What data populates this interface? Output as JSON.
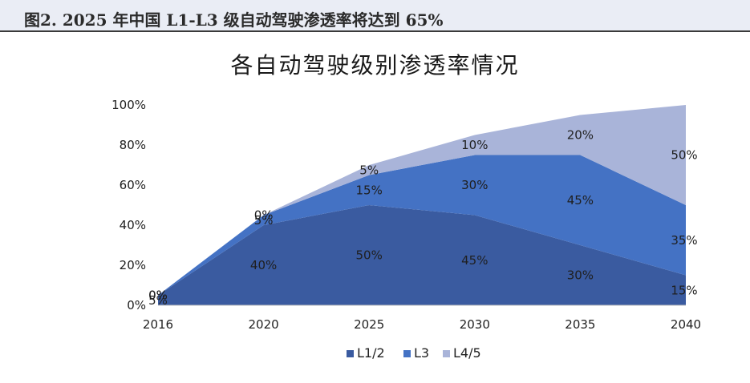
{
  "figure": {
    "caption": "图2. 2025 年中国 L1-L3 级自动驾驶渗透率将达到 65%"
  },
  "chart_data": {
    "type": "area",
    "stacked": true,
    "title": "各自动驾驶级别渗透率情况",
    "categories": [
      "2016",
      "2020",
      "2025",
      "2030",
      "2035",
      "2040"
    ],
    "y_ticks": [
      "0%",
      "20%",
      "40%",
      "60%",
      "80%",
      "100%"
    ],
    "ylim": [
      0,
      100
    ],
    "series": [
      {
        "name": "L1/2",
        "values": [
          5,
          40,
          50,
          45,
          30,
          15
        ],
        "labels": [
          "5%",
          "40%",
          "50%",
          "45%",
          "30%",
          "15%"
        ],
        "color": "#3a5ba0"
      },
      {
        "name": "L3",
        "values": [
          0,
          5,
          15,
          30,
          45,
          35
        ],
        "labels": [
          "0%",
          "5%",
          "15%",
          "30%",
          "45%",
          "35%"
        ],
        "color": "#4472c4"
      },
      {
        "name": "L4/5",
        "values": [
          0,
          0,
          5,
          10,
          20,
          50
        ],
        "labels": [
          "0%",
          "0%",
          "5%",
          "10%",
          "20%",
          "50%"
        ],
        "color": "#a9b4d9"
      }
    ],
    "grid": false,
    "legend_position": "bottom"
  }
}
